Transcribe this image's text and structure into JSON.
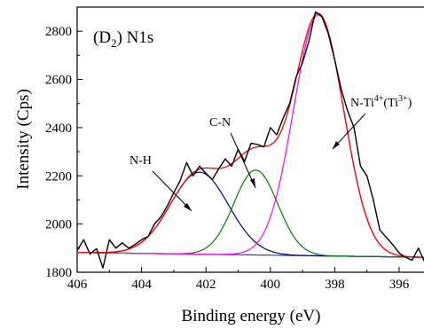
{
  "chart_data": {
    "type": "line",
    "title": "(D2) N1s",
    "title_main": "(D",
    "title_sub": "2",
    "title_rest": ") N1s",
    "xlabel": "Binding energy (eV)",
    "ylabel": "Intensity (Cps)",
    "xlim": [
      406,
      395.2
    ],
    "x_reversed": true,
    "ylim": [
      1800,
      2900
    ],
    "x_ticks": [
      406,
      404,
      402,
      400,
      398,
      396
    ],
    "y_ticks": [
      1800,
      2000,
      2200,
      2400,
      2600,
      2800
    ],
    "grid": false,
    "baseline": {
      "left": 1882,
      "right": 1862
    },
    "series": [
      {
        "color": "#000000",
        "values": []
      },
      {
        "color": "#ff0000",
        "values": []
      },
      {
        "color": "#ff00ff",
        "center": 398.5,
        "amplitude": 1000,
        "sigma": 0.78
      },
      {
        "color": "#008000",
        "center": 400.45,
        "amplitude": 352,
        "sigma": 0.68
      },
      {
        "color": "#00008b",
        "center": 402.2,
        "amplitude": 340,
        "sigma": 0.9
      }
    ],
    "raw_points": [
      [
        406.0,
        1890
      ],
      [
        405.8,
        1935
      ],
      [
        405.6,
        1875
      ],
      [
        405.4,
        1898
      ],
      [
        405.2,
        1818
      ],
      [
        405.0,
        1935
      ],
      [
        404.8,
        1900
      ],
      [
        404.6,
        1922
      ],
      [
        404.4,
        1900
      ],
      [
        404.2,
        1915
      ],
      [
        404.0,
        1935
      ],
      [
        403.8,
        1948
      ],
      [
        403.6,
        2000
      ],
      [
        403.4,
        2030
      ],
      [
        403.2,
        2075
      ],
      [
        403.0,
        2130
      ],
      [
        402.8,
        2180
      ],
      [
        402.6,
        2255
      ],
      [
        402.4,
        2200
      ],
      [
        402.2,
        2240
      ],
      [
        402.0,
        2210
      ],
      [
        401.8,
        2185
      ],
      [
        401.6,
        2230
      ],
      [
        401.4,
        2270
      ],
      [
        401.2,
        2240
      ],
      [
        401.0,
        2310
      ],
      [
        400.8,
        2260
      ],
      [
        400.6,
        2335
      ],
      [
        400.4,
        2330
      ],
      [
        400.2,
        2320
      ],
      [
        400.0,
        2400
      ],
      [
        399.8,
        2370
      ],
      [
        399.6,
        2440
      ],
      [
        399.4,
        2500
      ],
      [
        399.2,
        2610
      ],
      [
        399.0,
        2670
      ],
      [
        398.8,
        2760
      ],
      [
        398.6,
        2880
      ],
      [
        398.4,
        2860
      ],
      [
        398.2,
        2790
      ],
      [
        398.0,
        2680
      ],
      [
        397.8,
        2560
      ],
      [
        397.6,
        2470
      ],
      [
        397.4,
        2400
      ],
      [
        397.2,
        2240
      ],
      [
        397.0,
        2200
      ],
      [
        396.8,
        2100
      ],
      [
        396.6,
        1975
      ],
      [
        396.4,
        1945
      ],
      [
        396.2,
        1915
      ],
      [
        396.0,
        1880
      ],
      [
        395.8,
        1862
      ],
      [
        395.6,
        1850
      ],
      [
        395.4,
        1900
      ],
      [
        395.2,
        1840
      ]
    ],
    "annotations": [
      {
        "text": "N-H",
        "target": [
          401.95,
          2130
        ]
      },
      {
        "text": "C-N",
        "target": [
          400.35,
          2080
        ]
      },
      {
        "text_main": "N-Ti",
        "text_sup1": "4+",
        "text_mid": "(Ti",
        "text_sup2": "3+",
        "text_end": ")",
        "target": [
          398.0,
          2300
        ]
      }
    ]
  }
}
